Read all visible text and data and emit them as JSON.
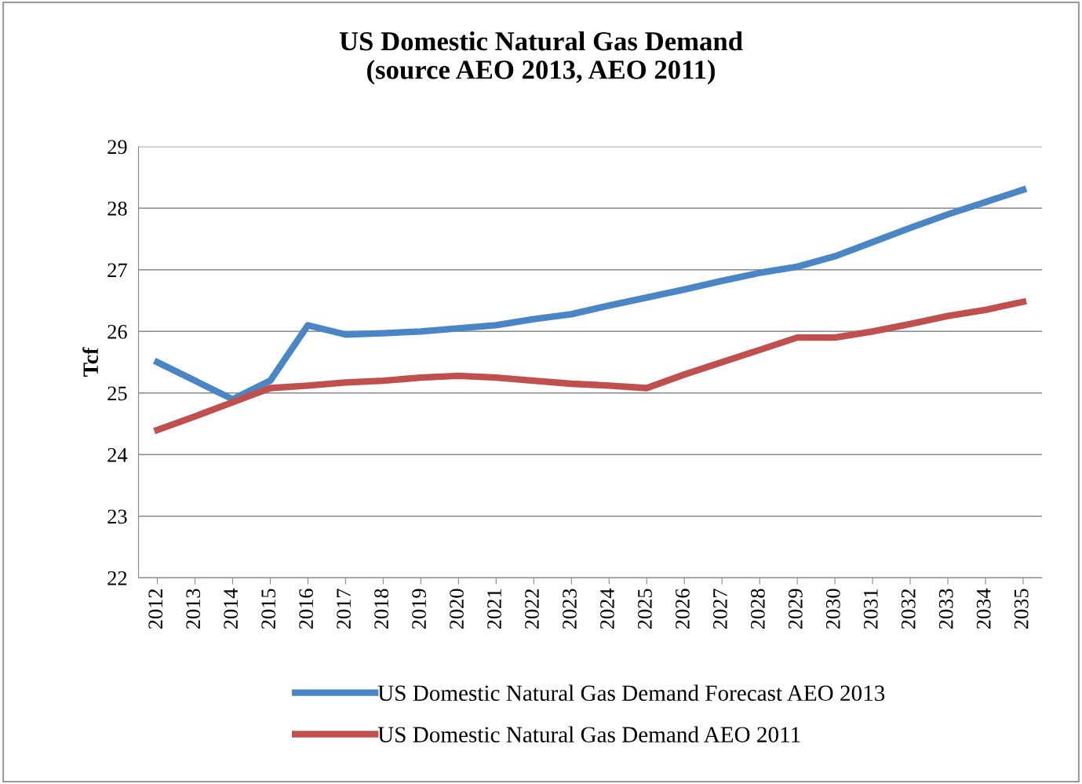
{
  "chart_data": {
    "type": "line",
    "title": "US Domestic Natural Gas Demand\n(source AEO 2013, AEO 2011)",
    "ylabel": "Tcf",
    "categories": [
      "2012",
      "2013",
      "2014",
      "2015",
      "2016",
      "2017",
      "2018",
      "2019",
      "2020",
      "2021",
      "2022",
      "2023",
      "2024",
      "2025",
      "2026",
      "2027",
      "2028",
      "2029",
      "2030",
      "2031",
      "2032",
      "2033",
      "2034",
      "2035"
    ],
    "series": [
      {
        "name": "US Domestic Natural Gas Demand Forecast AEO 2013",
        "color": "#4a86c5",
        "values": [
          25.5,
          25.2,
          24.9,
          25.2,
          26.1,
          25.95,
          25.97,
          26.0,
          26.05,
          26.1,
          26.2,
          26.28,
          26.42,
          26.55,
          26.68,
          26.82,
          26.95,
          27.05,
          27.22,
          27.45,
          27.68,
          27.9,
          28.1,
          28.3
        ]
      },
      {
        "name": "US Domestic Natural Gas Demand AEO 2011",
        "color": "#c0504d",
        "values": [
          24.4,
          24.62,
          24.85,
          25.08,
          25.12,
          25.17,
          25.2,
          25.25,
          25.28,
          25.25,
          25.2,
          25.15,
          25.12,
          25.08,
          25.3,
          25.5,
          25.7,
          25.9,
          25.9,
          26.0,
          26.12,
          26.25,
          26.35,
          26.48
        ]
      }
    ],
    "ylim": [
      22,
      29
    ],
    "yticks": [
      22,
      23,
      24,
      25,
      26,
      27,
      28,
      29
    ],
    "grid": "y",
    "legend": "bottom",
    "marker": "none",
    "line_style": "solid"
  }
}
